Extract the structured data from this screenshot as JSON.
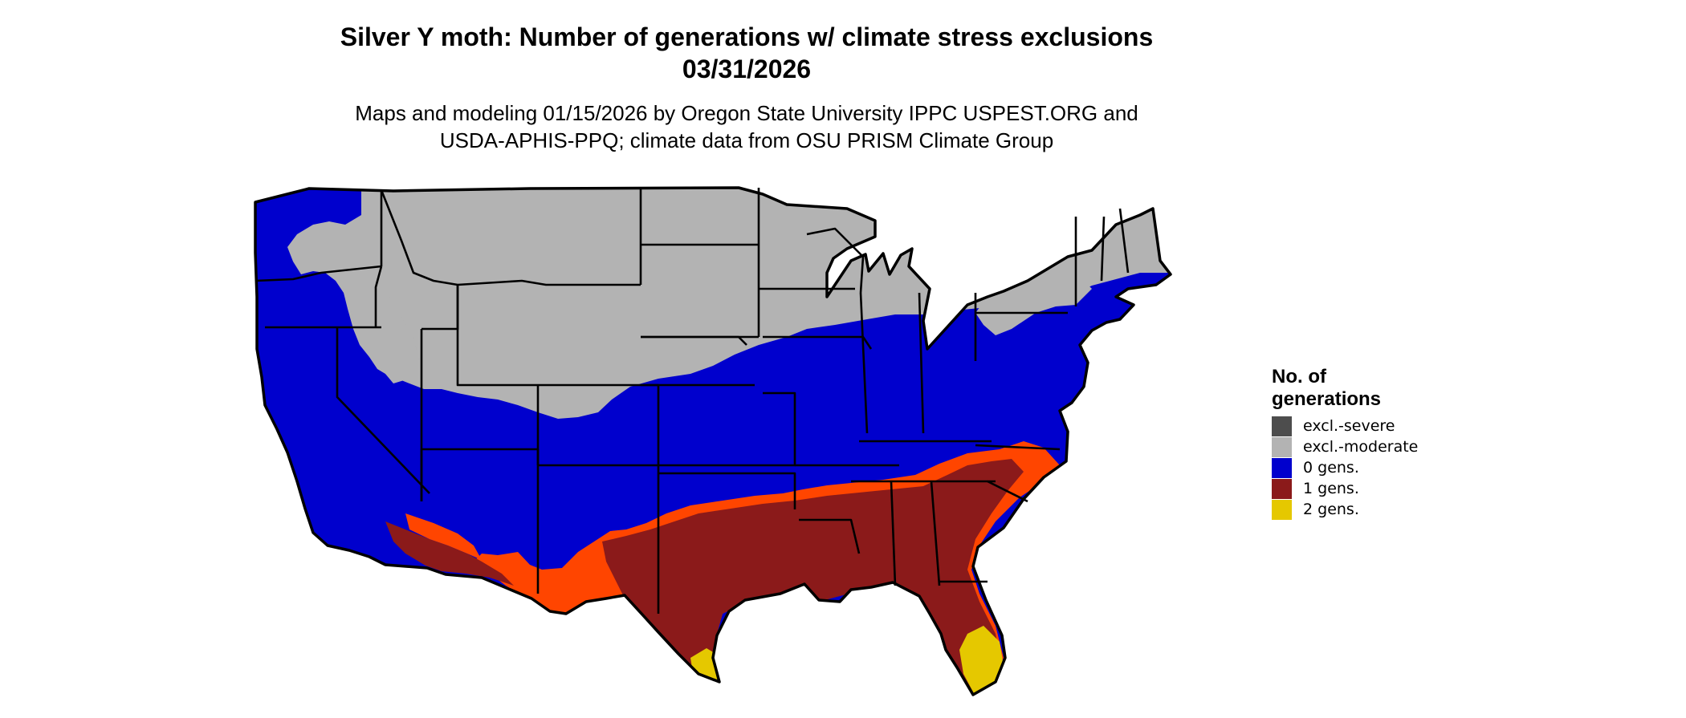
{
  "title": {
    "line1": "Silver Y moth: Number of generations w/ climate stress exclusions",
    "line2": "03/31/2026"
  },
  "subtitle": {
    "line1": "Maps and modeling 01/15/2026 by Oregon State University IPPC USPEST.ORG and",
    "line2": "USDA-APHIS-PPQ; climate data from OSU PRISM Climate Group"
  },
  "legend": {
    "title_line1": "No. of",
    "title_line2": "generations",
    "items": [
      {
        "label": "excl.-severe",
        "color": "#4d4d4d"
      },
      {
        "label": "excl.-moderate",
        "color": "#b3b3b3"
      },
      {
        "label": "0 gens.",
        "color": "#0000cd"
      },
      {
        "label": "1 gens.",
        "color": "#8b1a1a"
      },
      {
        "label": "2 gens.",
        "color": "#e5c800"
      }
    ]
  },
  "map_colors": {
    "excl_severe": "#4d4d4d",
    "excl_moderate": "#b3b3b3",
    "gens_0": "#0000cd",
    "gens_1": "#8b1a1a",
    "gens_1_margin": "#ff4500",
    "gens_2": "#e5c800",
    "gens_2_bright": "#ffff00",
    "border": "#000000"
  }
}
